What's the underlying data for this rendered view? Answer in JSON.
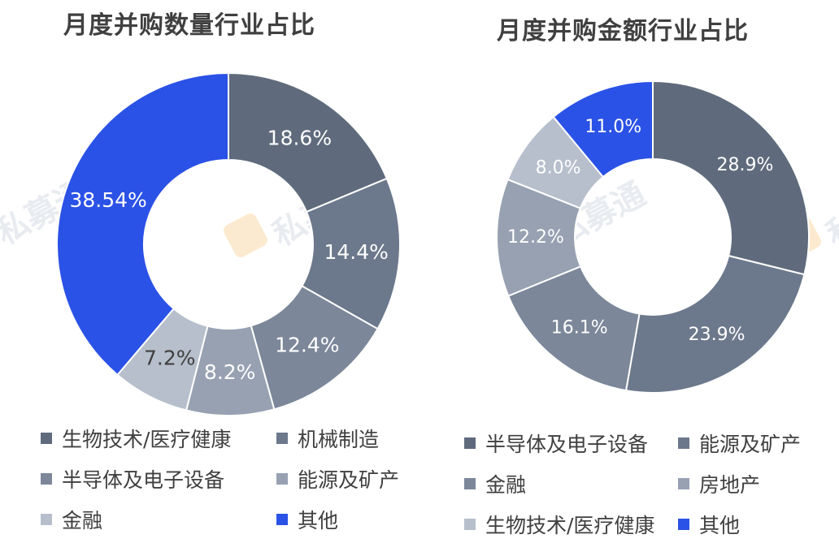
{
  "watermark": "私募通",
  "chart_data": [
    {
      "type": "pie",
      "donut": true,
      "title": "月度并购数量行业占比",
      "slices": [
        {
          "label": "生物技术/医疗健康",
          "value": 18.6,
          "value_label": "18.6%",
          "color": "#5f6b7c",
          "label_color": "#ffffff"
        },
        {
          "label": "机械制造",
          "value": 14.4,
          "value_label": "14.4%",
          "color": "#6c788b",
          "label_color": "#ffffff"
        },
        {
          "label": "半导体及电子设备",
          "value": 12.4,
          "value_label": "12.4%",
          "color": "#7c879a",
          "label_color": "#ffffff"
        },
        {
          "label": "能源及矿产",
          "value": 8.2,
          "value_label": "8.2%",
          "color": "#97a1b2",
          "label_color": "#ffffff"
        },
        {
          "label": "金融",
          "value": 7.2,
          "value_label": "7.2%",
          "color": "#b7bfcc",
          "label_color": "#404040"
        },
        {
          "label": "其他",
          "value": 38.54,
          "value_label": "38.54%",
          "color": "#2b52e6",
          "label_color": "#ffffff"
        }
      ],
      "legend_position": "bottom"
    },
    {
      "type": "pie",
      "donut": true,
      "title": "月度并购金额行业占比",
      "slices": [
        {
          "label": "半导体及电子设备",
          "value": 28.9,
          "value_label": "28.9%",
          "color": "#5f6b7c",
          "label_color": "#ffffff"
        },
        {
          "label": "能源及矿产",
          "value": 23.9,
          "value_label": "23.9%",
          "color": "#6c788b",
          "label_color": "#ffffff"
        },
        {
          "label": "金融",
          "value": 16.1,
          "value_label": "16.1%",
          "color": "#7c879a",
          "label_color": "#ffffff"
        },
        {
          "label": "房地产",
          "value": 12.2,
          "value_label": "12.2%",
          "color": "#97a1b2",
          "label_color": "#ffffff"
        },
        {
          "label": "生物技术/医疗健康",
          "value": 8.0,
          "value_label": "8.0%",
          "color": "#b7bfcc",
          "label_color": "#ffffff"
        },
        {
          "label": "其他",
          "value": 11.0,
          "value_label": "11.0%",
          "color": "#2b52e6",
          "label_color": "#ffffff"
        }
      ],
      "legend_position": "bottom"
    }
  ]
}
